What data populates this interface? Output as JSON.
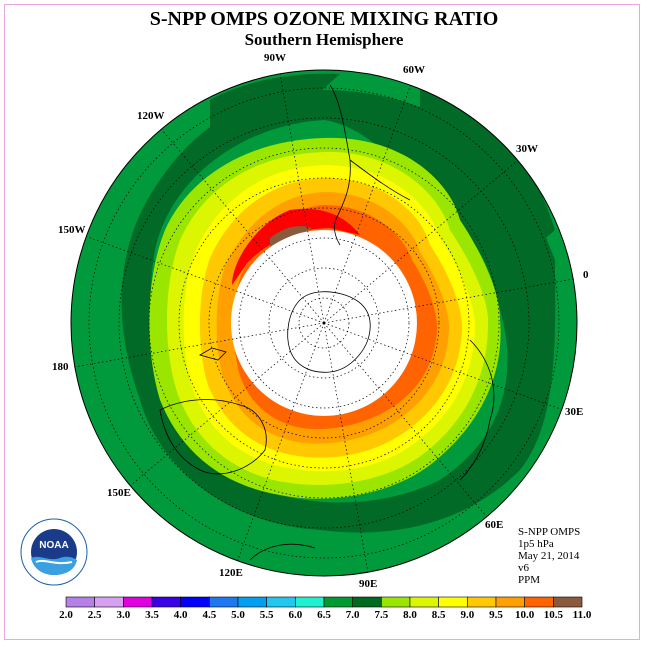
{
  "title": "S-NPP OMPS OZONE MIXING RATIO",
  "subtitle": "Southern Hemisphere",
  "longitude_labels": [
    "90W",
    "60W",
    "30W",
    "0",
    "30E",
    "60E",
    "90E",
    "120E",
    "150E",
    "180",
    "150W",
    "120W"
  ],
  "info": {
    "line1": "S-NPP OMPS",
    "line2": "1p5 hPa",
    "line3": "May 21, 2014",
    "line4": "v6",
    "line5": "PPM"
  },
  "logo": {
    "text": "NOAA",
    "ring_text": "NATIONAL OCEANIC AND ATMOSPHERIC ADMINISTRATION · U.S. DEPARTMENT OF COMMERCE"
  },
  "colorbar": {
    "ticks": [
      "2.0",
      "2.5",
      "3.0",
      "3.5",
      "4.0",
      "4.5",
      "5.0",
      "5.5",
      "6.0",
      "6.5",
      "7.0",
      "7.5",
      "8.0",
      "8.5",
      "9.0",
      "9.5",
      "10.0",
      "10.5",
      "11.0"
    ],
    "colors": [
      "#b580e8",
      "#d7a0f0",
      "#e000e0",
      "#3a00e8",
      "#0000ff",
      "#1e78f0",
      "#00a0f0",
      "#20c8f0",
      "#20f0d0",
      "#009a30",
      "#006a20",
      "#9ae600",
      "#dcf500",
      "#ffff00",
      "#ffc800",
      "#ffa000",
      "#ff6400",
      "#ff0000",
      "#8b5a3c"
    ]
  },
  "map_colors": {
    "background_green": "#009a3c",
    "dark_green": "#006a26",
    "polar_gap": "#ffffff"
  }
}
